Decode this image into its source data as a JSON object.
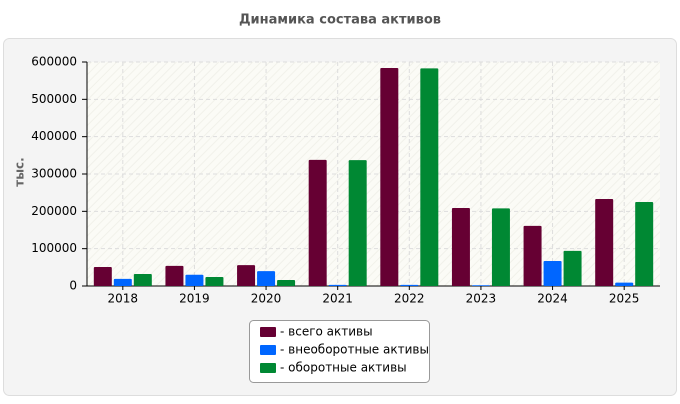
{
  "chart_data": {
    "type": "bar",
    "title": "Динамика состава активов",
    "y_label": "тыс.",
    "categories": [
      "2018",
      "2019",
      "2020",
      "2021",
      "2022",
      "2023",
      "2024",
      "2025"
    ],
    "series": [
      {
        "name": "- всего активы",
        "color": "#660033",
        "values": [
          51000,
          54000,
          56000,
          338000,
          584000,
          209000,
          161000,
          233000
        ]
      },
      {
        "name": "- внеоборотные активы",
        "color": "#0066ff",
        "values": [
          19000,
          30000,
          40000,
          3000,
          3000,
          2000,
          67000,
          9000
        ]
      },
      {
        "name": "- оборотные активы",
        "color": "#008833",
        "values": [
          32000,
          24000,
          16000,
          337000,
          583000,
          208000,
          94000,
          225000
        ]
      }
    ],
    "ylim": [
      0,
      600000
    ],
    "yticks": [
      0,
      100000,
      200000,
      300000,
      400000,
      500000,
      600000
    ],
    "grid": true
  }
}
